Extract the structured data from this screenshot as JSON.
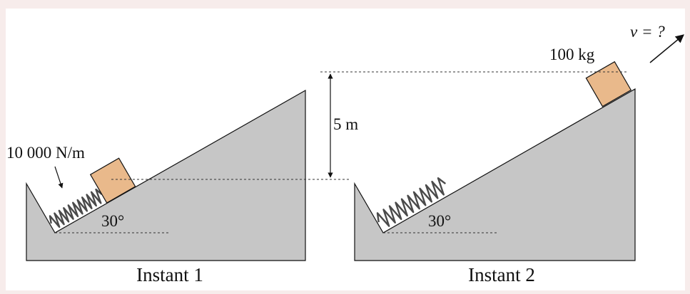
{
  "colors": {
    "page_background": "#f7eceb",
    "panel_background": "#ffffff",
    "ramp_fill": "#c6c6c6",
    "block_fill": "#e9b98b",
    "line": "#111111",
    "spring": "#444444"
  },
  "instant1": {
    "caption": "Instant 1",
    "spring_constant_label": "10 000 N/m",
    "angle_label": "30°"
  },
  "instant2": {
    "caption": "Instant 2",
    "mass_label": "100 kg",
    "velocity_label": "v = ?",
    "angle_label": "30°"
  },
  "height_label": "5 m"
}
